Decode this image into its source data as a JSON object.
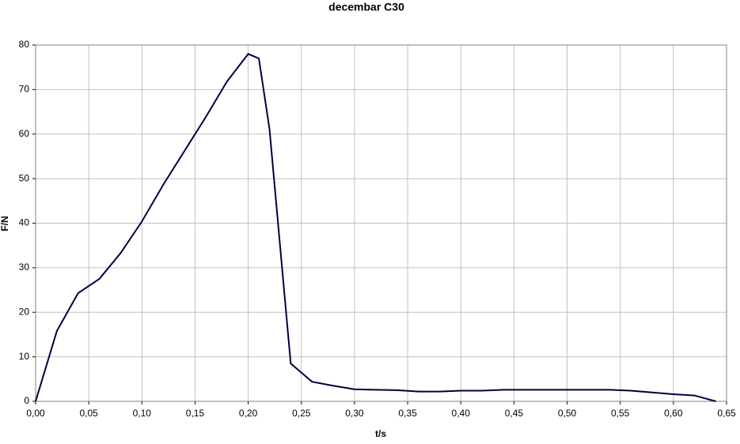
{
  "chart_data": {
    "type": "line",
    "title": "decembar C30",
    "x_label": "t/s",
    "y_label": "F/N",
    "x": [
      0.0,
      0.02,
      0.04,
      0.06,
      0.08,
      0.1,
      0.12,
      0.14,
      0.16,
      0.18,
      0.2,
      0.21,
      0.22,
      0.24,
      0.26,
      0.28,
      0.3,
      0.32,
      0.34,
      0.36,
      0.38,
      0.4,
      0.42,
      0.44,
      0.46,
      0.48,
      0.5,
      0.52,
      0.54,
      0.56,
      0.58,
      0.6,
      0.62,
      0.64
    ],
    "values": [
      0,
      15.8,
      24.3,
      27.5,
      33.3,
      40.4,
      48.6,
      56.2,
      63.8,
      71.8,
      78.0,
      77.0,
      61.2,
      8.5,
      4.4,
      3.5,
      2.7,
      2.6,
      2.5,
      2.2,
      2.2,
      2.4,
      2.4,
      2.6,
      2.6,
      2.6,
      2.6,
      2.6,
      2.6,
      2.4,
      2.0,
      1.6,
      1.3,
      0
    ],
    "color": "#000040",
    "xlim": [
      0,
      0.65
    ],
    "xticks": [
      {
        "value": 0,
        "label": "0,00"
      },
      {
        "value": 0.05,
        "label": "0,05"
      },
      {
        "value": 0.1,
        "label": "0,10"
      },
      {
        "value": 0.15,
        "label": "0,15"
      },
      {
        "value": 0.2,
        "label": "0,20"
      },
      {
        "value": 0.25,
        "label": "0,25"
      },
      {
        "value": 0.3,
        "label": "0,30"
      },
      {
        "value": 0.35,
        "label": "0,35"
      },
      {
        "value": 0.4,
        "label": "0,40"
      },
      {
        "value": 0.45,
        "label": "0,45"
      },
      {
        "value": 0.5,
        "label": "0,50"
      },
      {
        "value": 0.55,
        "label": "0,55"
      },
      {
        "value": 0.6,
        "label": "0,60"
      },
      {
        "value": 0.65,
        "label": "0,65"
      }
    ],
    "ylim": [
      0,
      80
    ],
    "yticks": [
      0,
      10,
      20,
      30,
      40,
      50,
      60,
      70,
      80
    ],
    "grid": true
  }
}
